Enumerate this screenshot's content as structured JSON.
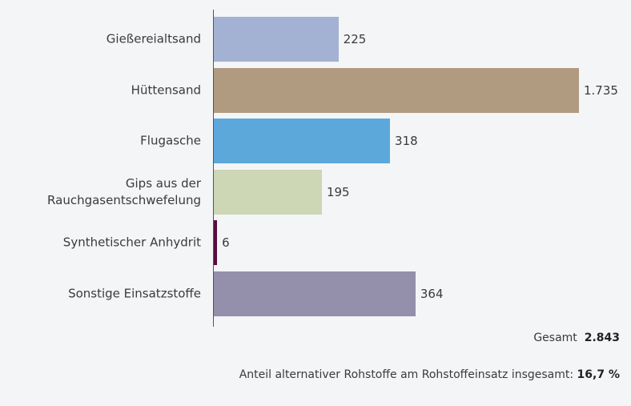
{
  "chart_data": {
    "type": "bar",
    "orientation": "horizontal",
    "categories": [
      "Gießereialtsand",
      "Hüttensand",
      "Flugasche",
      "Gips aus der Rauchgasentschwefelung",
      "Synthetischer Anhydrit",
      "Sonstige Einsatzstoffe"
    ],
    "values": [
      225,
      1735,
      318,
      195,
      6,
      364
    ],
    "value_labels": [
      "225",
      "1.735",
      "318",
      "195",
      "6",
      "364"
    ],
    "colors": [
      "#a3b1d3",
      "#b09b81",
      "#5ca8db",
      "#cdd6b5",
      "#5a0c3e",
      "#948fab"
    ],
    "total_label": "Gesamt",
    "total_value": "2.843",
    "share_label": "Anteil alternativer Rohstoffe am Rohstoffeinsatz insgesamt:",
    "share_value": "16,7 %"
  }
}
